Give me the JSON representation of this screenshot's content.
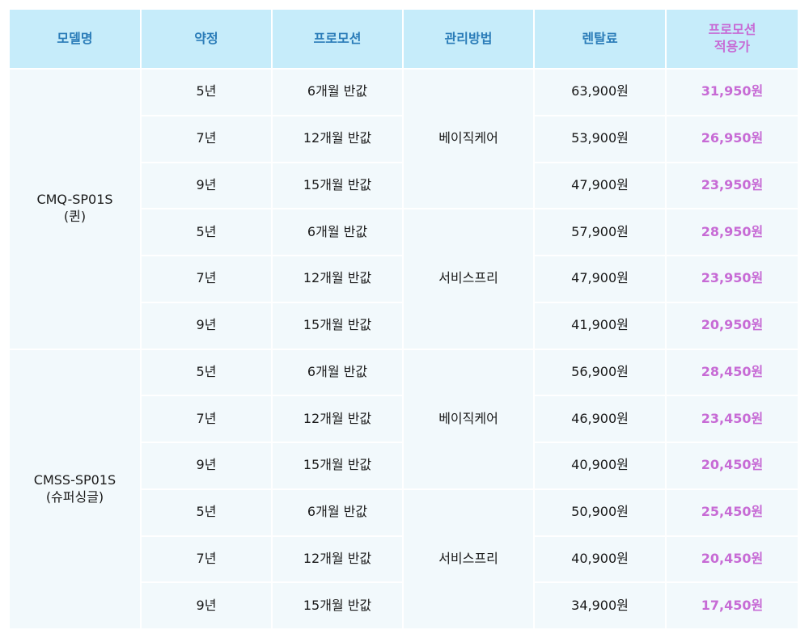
{
  "headers": {
    "model": "모델명",
    "term": "약정",
    "promotion": "프로모션",
    "management": "관리방법",
    "rental": "렌탈료",
    "promo_price_line1": "프로모션",
    "promo_price_line2": "적용가"
  },
  "colors": {
    "header_bg": "#c6ecfa",
    "header_text": "#2a7cb8",
    "promo_text": "#c76bd5",
    "cell_bg": "#f2f9fc"
  },
  "models": [
    {
      "name": "CMQ-SP01S",
      "sub": "(퀸)",
      "groups": [
        {
          "management": "베이직케어",
          "rows": [
            {
              "term": "5년",
              "promotion": "6개월 반값",
              "rental": "63,900원",
              "promo_price": "31,950원"
            },
            {
              "term": "7년",
              "promotion": "12개월 반값",
              "rental": "53,900원",
              "promo_price": "26,950원"
            },
            {
              "term": "9년",
              "promotion": "15개월 반값",
              "rental": "47,900원",
              "promo_price": "23,950원"
            }
          ]
        },
        {
          "management": "서비스프리",
          "rows": [
            {
              "term": "5년",
              "promotion": "6개월 반값",
              "rental": "57,900원",
              "promo_price": "28,950원"
            },
            {
              "term": "7년",
              "promotion": "12개월 반값",
              "rental": "47,900원",
              "promo_price": "23,950원"
            },
            {
              "term": "9년",
              "promotion": "15개월 반값",
              "rental": "41,900원",
              "promo_price": "20,950원"
            }
          ]
        }
      ]
    },
    {
      "name": "CMSS-SP01S",
      "sub": "(슈퍼싱글)",
      "groups": [
        {
          "management": "베이직케어",
          "rows": [
            {
              "term": "5년",
              "promotion": "6개월 반값",
              "rental": "56,900원",
              "promo_price": "28,450원"
            },
            {
              "term": "7년",
              "promotion": "12개월 반값",
              "rental": "46,900원",
              "promo_price": "23,450원"
            },
            {
              "term": "9년",
              "promotion": "15개월 반값",
              "rental": "40,900원",
              "promo_price": "20,450원"
            }
          ]
        },
        {
          "management": "서비스프리",
          "rows": [
            {
              "term": "5년",
              "promotion": "6개월 반값",
              "rental": "50,900원",
              "promo_price": "25,450원"
            },
            {
              "term": "7년",
              "promotion": "12개월 반값",
              "rental": "40,900원",
              "promo_price": "20,450원"
            },
            {
              "term": "9년",
              "promotion": "15개월 반값",
              "rental": "34,900원",
              "promo_price": "17,450원"
            }
          ]
        }
      ]
    }
  ]
}
